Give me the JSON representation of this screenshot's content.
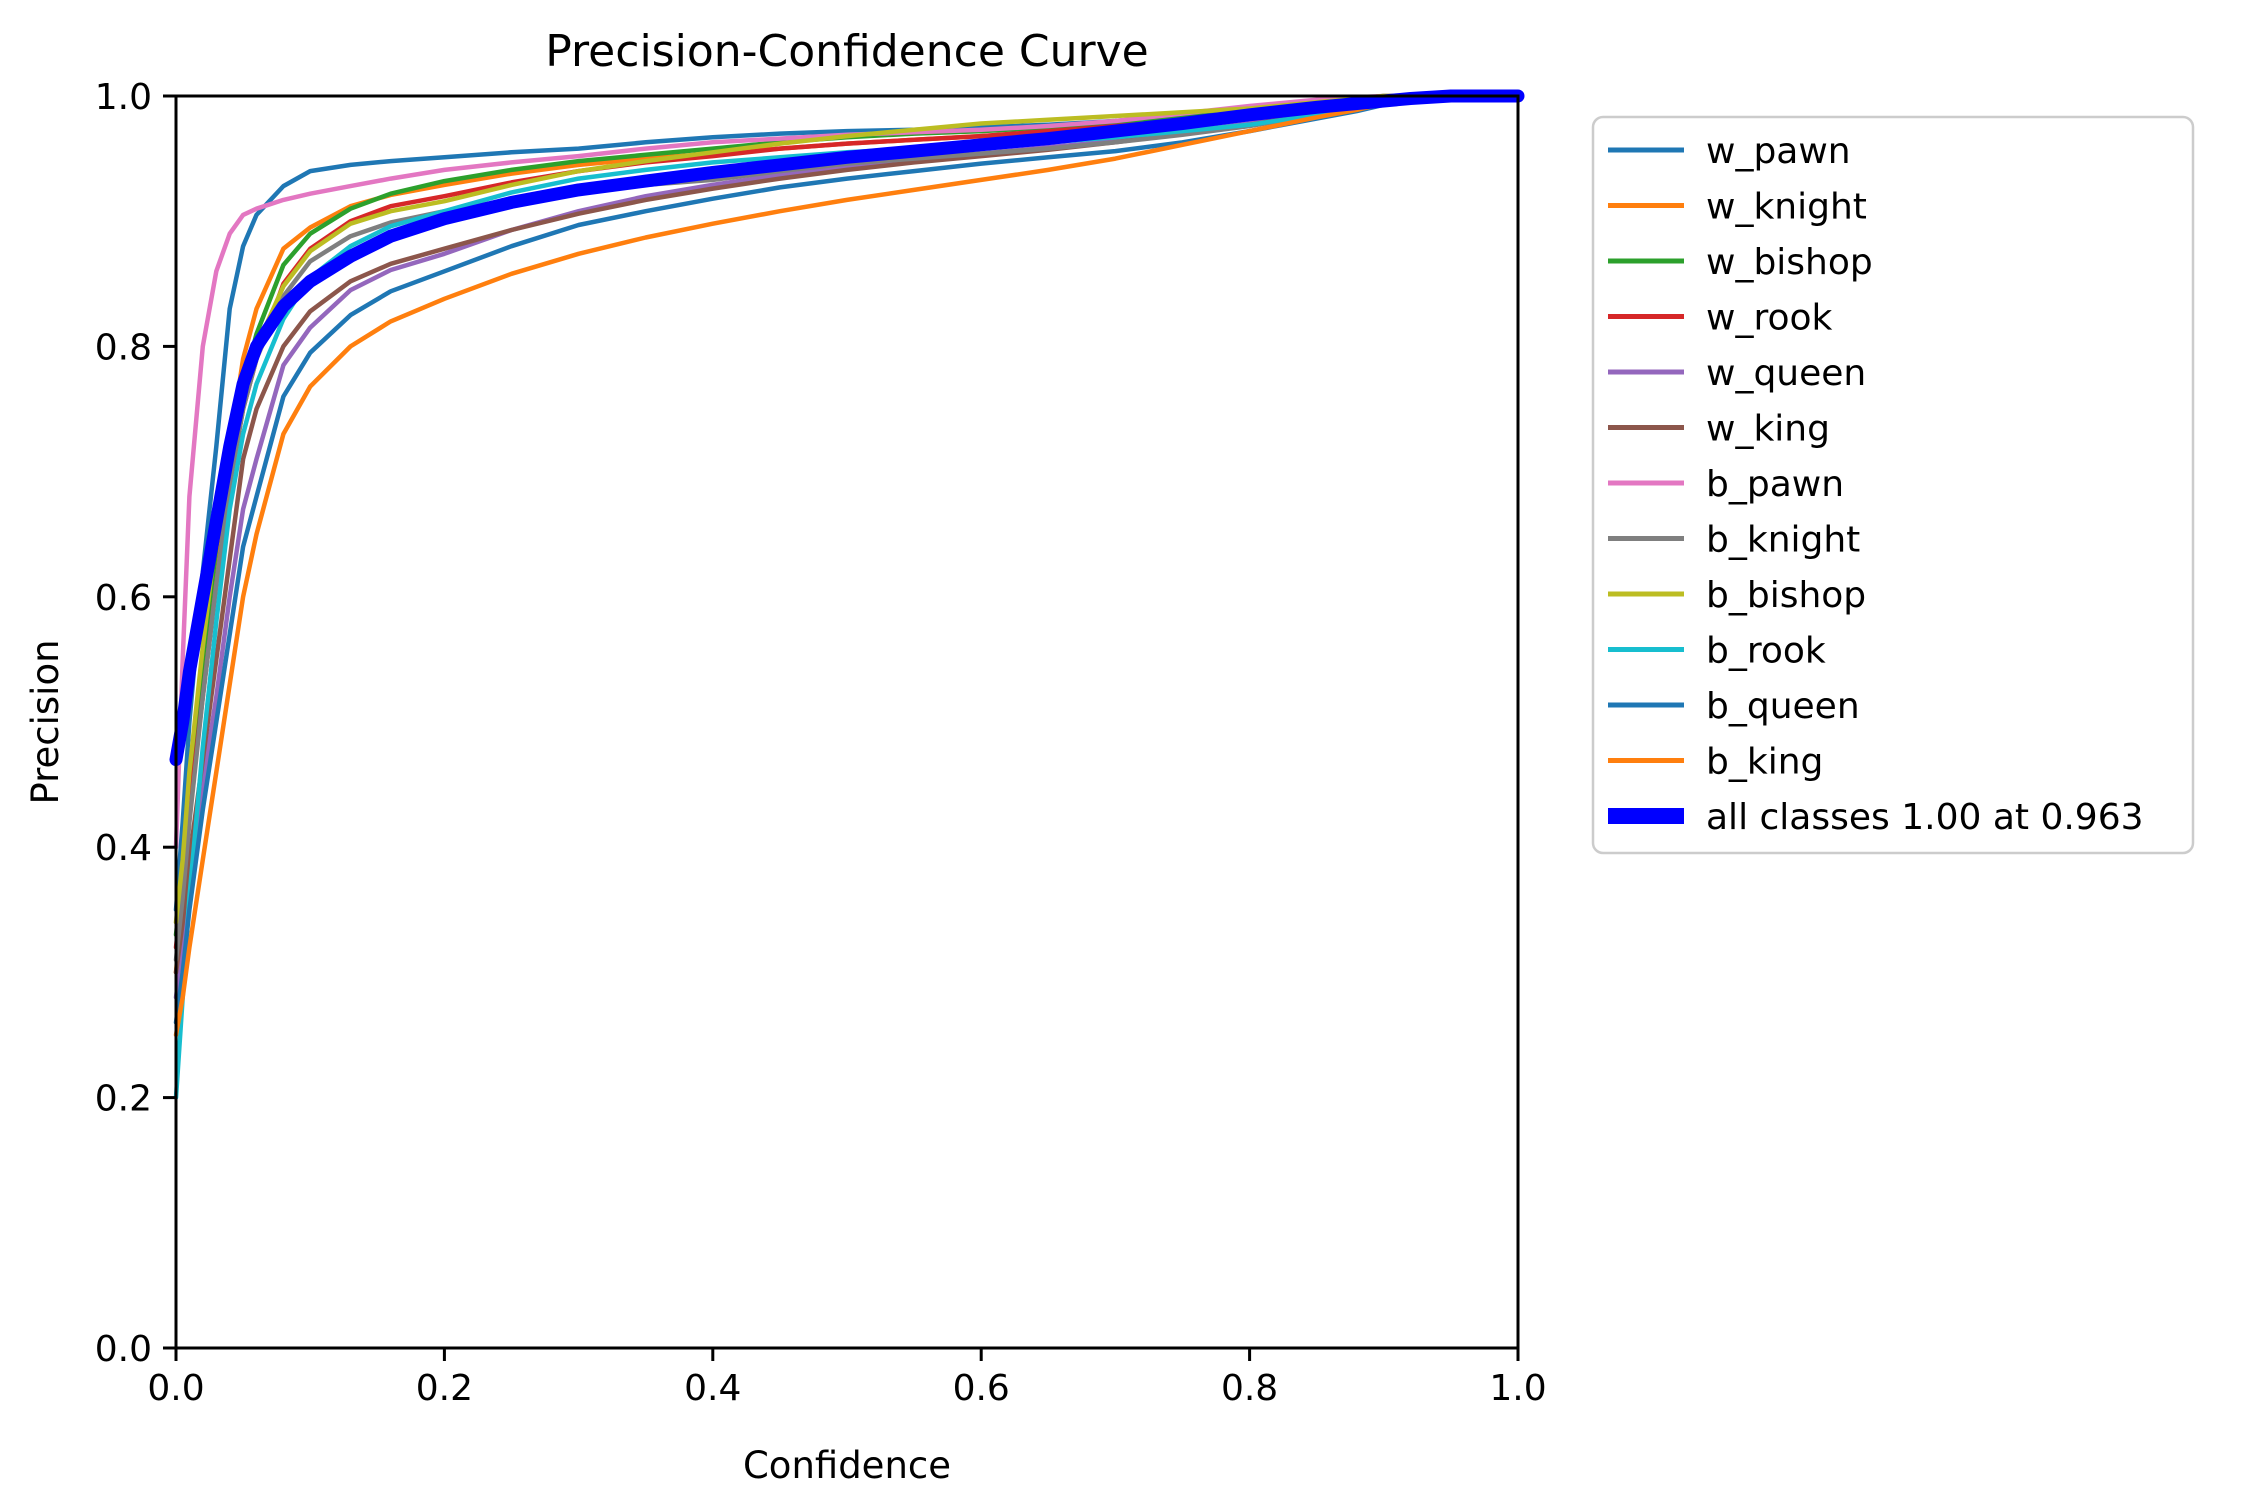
{
  "figure": {
    "title": "Precision-Confidence Curve",
    "xlabel": "Confidence",
    "ylabel": "Precision",
    "background": "#ffffff",
    "spine_color": "#000000",
    "legend_border_color": "#cccccc"
  },
  "axes": {
    "x_tick_labels": [
      "0.0",
      "0.2",
      "0.4",
      "0.6",
      "0.8",
      "1.0"
    ],
    "y_tick_labels": [
      "0.0",
      "0.2",
      "0.4",
      "0.6",
      "0.8",
      "1.0"
    ],
    "x_tick_values": [
      0.0,
      0.2,
      0.4,
      0.6,
      0.8,
      1.0
    ],
    "y_tick_values": [
      0.0,
      0.2,
      0.4,
      0.6,
      0.8,
      1.0
    ]
  },
  "chart_data": {
    "type": "line",
    "title": "Precision-Confidence Curve",
    "xlabel": "Confidence",
    "ylabel": "Precision",
    "xlim": [
      0.0,
      1.0
    ],
    "ylim": [
      0.0,
      1.0
    ],
    "grid": false,
    "legend_position": "outside-right-top",
    "x": [
      0,
      0.005,
      0.01,
      0.02,
      0.03,
      0.04,
      0.05,
      0.06,
      0.08,
      0.1,
      0.13,
      0.16,
      0.2,
      0.25,
      0.3,
      0.35,
      0.4,
      0.45,
      0.5,
      0.55,
      0.6,
      0.65,
      0.7,
      0.75,
      0.8,
      0.85,
      0.88,
      0.9,
      0.92,
      0.95,
      1.0
    ],
    "series": [
      {
        "name": "w_pawn",
        "color": "#1f77b4",
        "width": 4.5,
        "thick": false,
        "values": [
          0.35,
          0.42,
          0.5,
          0.62,
          0.72,
          0.83,
          0.88,
          0.905,
          0.928,
          0.94,
          0.945,
          0.948,
          0.951,
          0.955,
          0.958,
          0.963,
          0.967,
          0.97,
          0.972,
          0.973,
          0.975,
          0.977,
          0.98,
          0.985,
          0.99,
          0.995,
          0.998,
          1.0,
          1.0,
          1.0,
          1.0
        ]
      },
      {
        "name": "w_knight",
        "color": "#ff7f0e",
        "width": 4.5,
        "thick": false,
        "values": [
          0.3,
          0.36,
          0.43,
          0.54,
          0.63,
          0.72,
          0.79,
          0.83,
          0.878,
          0.895,
          0.912,
          0.921,
          0.929,
          0.938,
          0.945,
          0.95,
          0.954,
          0.958,
          0.962,
          0.965,
          0.968,
          0.971,
          0.975,
          0.979,
          0.983,
          0.99,
          0.995,
          0.998,
          1.0,
          1.0,
          1.0
        ]
      },
      {
        "name": "w_bishop",
        "color": "#2ca02c",
        "width": 4.5,
        "thick": false,
        "values": [
          0.33,
          0.38,
          0.45,
          0.55,
          0.64,
          0.71,
          0.77,
          0.81,
          0.865,
          0.89,
          0.91,
          0.922,
          0.932,
          0.941,
          0.948,
          0.953,
          0.958,
          0.963,
          0.967,
          0.97,
          0.972,
          0.975,
          0.979,
          0.983,
          0.988,
          0.994,
          0.998,
          1.0,
          1.0,
          1.0,
          1.0
        ]
      },
      {
        "name": "w_rook",
        "color": "#d62728",
        "width": 4.5,
        "thick": false,
        "values": [
          0.32,
          0.37,
          0.43,
          0.52,
          0.61,
          0.69,
          0.75,
          0.79,
          0.85,
          0.878,
          0.9,
          0.912,
          0.92,
          0.931,
          0.94,
          0.947,
          0.952,
          0.958,
          0.962,
          0.965,
          0.968,
          0.972,
          0.976,
          0.98,
          0.985,
          0.992,
          0.997,
          0.999,
          1.0,
          1.0,
          1.0
        ]
      },
      {
        "name": "w_queen",
        "color": "#9467bd",
        "width": 4.5,
        "thick": false,
        "values": [
          0.28,
          0.32,
          0.37,
          0.45,
          0.52,
          0.6,
          0.67,
          0.71,
          0.785,
          0.815,
          0.845,
          0.861,
          0.874,
          0.893,
          0.908,
          0.92,
          0.929,
          0.937,
          0.944,
          0.949,
          0.954,
          0.959,
          0.964,
          0.971,
          0.978,
          0.987,
          0.992,
          0.996,
          0.999,
          1.0,
          1.0
        ]
      },
      {
        "name": "w_king",
        "color": "#8c564b",
        "width": 4.5,
        "thick": false,
        "values": [
          0.3,
          0.34,
          0.39,
          0.47,
          0.55,
          0.63,
          0.71,
          0.75,
          0.8,
          0.828,
          0.852,
          0.866,
          0.878,
          0.893,
          0.906,
          0.917,
          0.926,
          0.934,
          0.941,
          0.947,
          0.952,
          0.957,
          0.963,
          0.97,
          0.977,
          0.986,
          0.992,
          0.996,
          0.999,
          1.0,
          1.0
        ]
      },
      {
        "name": "b_pawn",
        "color": "#e377c2",
        "width": 4.5,
        "thick": false,
        "values": [
          0.4,
          0.55,
          0.68,
          0.8,
          0.86,
          0.89,
          0.905,
          0.91,
          0.917,
          0.922,
          0.928,
          0.934,
          0.941,
          0.947,
          0.952,
          0.958,
          0.963,
          0.966,
          0.969,
          0.971,
          0.973,
          0.976,
          0.98,
          0.986,
          0.992,
          0.997,
          0.999,
          1.0,
          1.0,
          1.0,
          1.0
        ]
      },
      {
        "name": "b_knight",
        "color": "#7f7f7f",
        "width": 4.5,
        "thick": false,
        "values": [
          0.31,
          0.36,
          0.42,
          0.52,
          0.61,
          0.69,
          0.75,
          0.79,
          0.84,
          0.868,
          0.888,
          0.899,
          0.908,
          0.917,
          0.924,
          0.929,
          0.933,
          0.94,
          0.946,
          0.95,
          0.954,
          0.958,
          0.963,
          0.969,
          0.976,
          0.985,
          0.991,
          0.995,
          0.999,
          1.0,
          1.0
        ]
      },
      {
        "name": "b_bishop",
        "color": "#bcbd22",
        "width": 4.5,
        "thick": false,
        "values": [
          0.34,
          0.39,
          0.46,
          0.56,
          0.65,
          0.72,
          0.77,
          0.8,
          0.848,
          0.876,
          0.898,
          0.908,
          0.916,
          0.929,
          0.94,
          0.948,
          0.955,
          0.962,
          0.968,
          0.973,
          0.978,
          0.981,
          0.984,
          0.987,
          0.99,
          0.995,
          0.998,
          1.0,
          1.0,
          1.0,
          1.0
        ]
      },
      {
        "name": "b_rook",
        "color": "#17becf",
        "width": 4.5,
        "thick": false,
        "values": [
          0.2,
          0.28,
          0.36,
          0.48,
          0.58,
          0.67,
          0.73,
          0.77,
          0.822,
          0.855,
          0.88,
          0.896,
          0.908,
          0.923,
          0.934,
          0.941,
          0.947,
          0.951,
          0.955,
          0.958,
          0.96,
          0.963,
          0.967,
          0.972,
          0.977,
          0.985,
          0.991,
          0.995,
          0.999,
          1.0,
          1.0
        ]
      },
      {
        "name": "b_queen",
        "color": "#1f77b4",
        "width": 4.5,
        "thick": false,
        "values": [
          0.26,
          0.3,
          0.35,
          0.43,
          0.5,
          0.57,
          0.64,
          0.68,
          0.76,
          0.795,
          0.825,
          0.844,
          0.86,
          0.88,
          0.897,
          0.908,
          0.918,
          0.927,
          0.934,
          0.94,
          0.946,
          0.951,
          0.956,
          0.963,
          0.972,
          0.982,
          0.988,
          0.993,
          0.998,
          1.0,
          1.0
        ]
      },
      {
        "name": "b_king",
        "color": "#ff7f0e",
        "width": 4.5,
        "thick": false,
        "values": [
          0.25,
          0.28,
          0.32,
          0.39,
          0.46,
          0.53,
          0.6,
          0.65,
          0.73,
          0.768,
          0.8,
          0.82,
          0.838,
          0.858,
          0.874,
          0.887,
          0.898,
          0.908,
          0.917,
          0.925,
          0.933,
          0.941,
          0.95,
          0.961,
          0.972,
          0.983,
          0.989,
          0.994,
          0.998,
          1.0,
          1.0
        ]
      },
      {
        "name": "all classes 1.00 at 0.963",
        "color": "#0000ff",
        "width": 13,
        "thick": true,
        "values": [
          0.47,
          0.5,
          0.54,
          0.6,
          0.66,
          0.72,
          0.77,
          0.8,
          0.832,
          0.852,
          0.872,
          0.888,
          0.902,
          0.915,
          0.925,
          0.932,
          0.939,
          0.945,
          0.951,
          0.956,
          0.961,
          0.966,
          0.972,
          0.978,
          0.985,
          0.991,
          0.994,
          0.996,
          0.998,
          1.0,
          1.0
        ]
      }
    ]
  }
}
